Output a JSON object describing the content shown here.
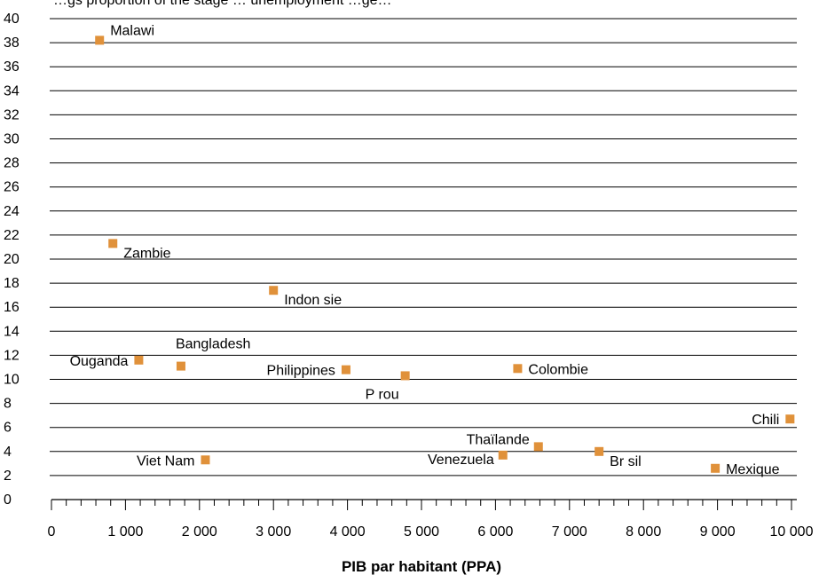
{
  "chart_data": {
    "type": "scatter",
    "title": "",
    "top_caption": "…gs proportion of the stage … unemployment …ge…",
    "xlabel": "PIB par habitant (PPA)",
    "ylabel": "",
    "xlim": [
      0,
      10000
    ],
    "ylim": [
      0,
      40
    ],
    "x_ticks": [
      0,
      1000,
      2000,
      3000,
      4000,
      5000,
      6000,
      7000,
      8000,
      9000,
      10000
    ],
    "x_tick_labels": [
      "0",
      "1 000",
      "2 000",
      "3 000",
      "4 000",
      "5 000",
      "6 000",
      "7 000",
      "8 000",
      "9 000",
      "10 000"
    ],
    "y_ticks": [
      0,
      2,
      4,
      6,
      8,
      10,
      12,
      14,
      16,
      18,
      20,
      22,
      24,
      26,
      28,
      30,
      32,
      34,
      36,
      38,
      40
    ],
    "grid": "horizontal",
    "marker_color": "#e0913a",
    "points": [
      {
        "label": "Malawi",
        "x": 650,
        "y": 38.2,
        "label_pos": "right-above"
      },
      {
        "label": "Zambie",
        "x": 830,
        "y": 21.3,
        "label_pos": "right-below"
      },
      {
        "label": "Indon sie",
        "x": 3000,
        "y": 17.4,
        "label_pos": "right-below"
      },
      {
        "label": "Ouganda",
        "x": 1180,
        "y": 11.6,
        "label_pos": "left"
      },
      {
        "label": "Bangladesh",
        "x": 1750,
        "y": 11.1,
        "label_pos": "right-above"
      },
      {
        "label": "Philippines",
        "x": 3980,
        "y": 10.8,
        "label_pos": "left"
      },
      {
        "label": "P rou",
        "x": 4780,
        "y": 10.3,
        "label_pos": "below"
      },
      {
        "label": "Colombie",
        "x": 6300,
        "y": 10.9,
        "label_pos": "right"
      },
      {
        "label": "Chili",
        "x": 9980,
        "y": 6.7,
        "label_pos": "left"
      },
      {
        "label": "Thaïlande",
        "x": 6580,
        "y": 4.4,
        "label_pos": "left-above"
      },
      {
        "label": "Viet Nam",
        "x": 2080,
        "y": 3.3,
        "label_pos": "left"
      },
      {
        "label": "Venezuela",
        "x": 6100,
        "y": 3.7,
        "label_pos": "left-below"
      },
      {
        "label": "Br sil",
        "x": 7400,
        "y": 4.0,
        "label_pos": "right-below"
      },
      {
        "label": "Mexique",
        "x": 8970,
        "y": 2.6,
        "label_pos": "right"
      }
    ]
  }
}
